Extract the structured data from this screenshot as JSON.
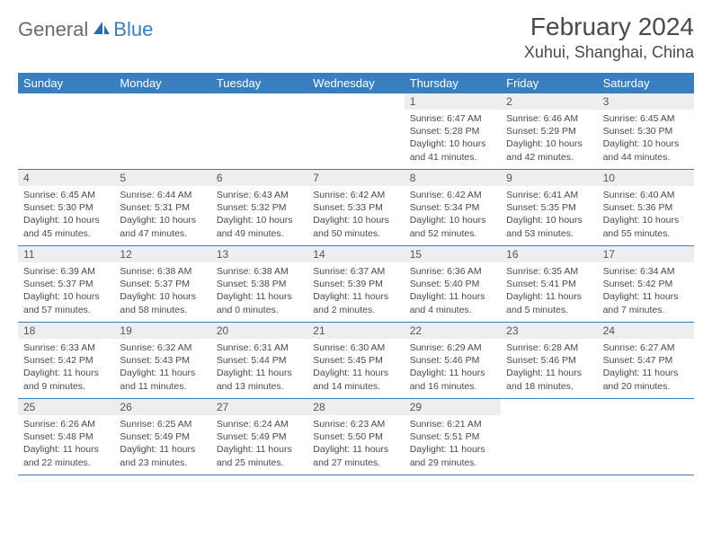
{
  "logo": {
    "general": "General",
    "blue": "Blue"
  },
  "title": "February 2024",
  "location": "Xuhui, Shanghai, China",
  "colors": {
    "header_bg": "#3a7fbd",
    "header_text": "#ffffff",
    "daynum_bg": "#eeeeee",
    "text": "#4a4a4a",
    "row_border": "#3a7fbd"
  },
  "day_names": [
    "Sunday",
    "Monday",
    "Tuesday",
    "Wednesday",
    "Thursday",
    "Friday",
    "Saturday"
  ],
  "weeks": [
    [
      {
        "n": "",
        "sr": "",
        "ss": "",
        "dl": ""
      },
      {
        "n": "",
        "sr": "",
        "ss": "",
        "dl": ""
      },
      {
        "n": "",
        "sr": "",
        "ss": "",
        "dl": ""
      },
      {
        "n": "",
        "sr": "",
        "ss": "",
        "dl": ""
      },
      {
        "n": "1",
        "sr": "Sunrise: 6:47 AM",
        "ss": "Sunset: 5:28 PM",
        "dl": "Daylight: 10 hours and 41 minutes."
      },
      {
        "n": "2",
        "sr": "Sunrise: 6:46 AM",
        "ss": "Sunset: 5:29 PM",
        "dl": "Daylight: 10 hours and 42 minutes."
      },
      {
        "n": "3",
        "sr": "Sunrise: 6:45 AM",
        "ss": "Sunset: 5:30 PM",
        "dl": "Daylight: 10 hours and 44 minutes."
      }
    ],
    [
      {
        "n": "4",
        "sr": "Sunrise: 6:45 AM",
        "ss": "Sunset: 5:30 PM",
        "dl": "Daylight: 10 hours and 45 minutes."
      },
      {
        "n": "5",
        "sr": "Sunrise: 6:44 AM",
        "ss": "Sunset: 5:31 PM",
        "dl": "Daylight: 10 hours and 47 minutes."
      },
      {
        "n": "6",
        "sr": "Sunrise: 6:43 AM",
        "ss": "Sunset: 5:32 PM",
        "dl": "Daylight: 10 hours and 49 minutes."
      },
      {
        "n": "7",
        "sr": "Sunrise: 6:42 AM",
        "ss": "Sunset: 5:33 PM",
        "dl": "Daylight: 10 hours and 50 minutes."
      },
      {
        "n": "8",
        "sr": "Sunrise: 6:42 AM",
        "ss": "Sunset: 5:34 PM",
        "dl": "Daylight: 10 hours and 52 minutes."
      },
      {
        "n": "9",
        "sr": "Sunrise: 6:41 AM",
        "ss": "Sunset: 5:35 PM",
        "dl": "Daylight: 10 hours and 53 minutes."
      },
      {
        "n": "10",
        "sr": "Sunrise: 6:40 AM",
        "ss": "Sunset: 5:36 PM",
        "dl": "Daylight: 10 hours and 55 minutes."
      }
    ],
    [
      {
        "n": "11",
        "sr": "Sunrise: 6:39 AM",
        "ss": "Sunset: 5:37 PM",
        "dl": "Daylight: 10 hours and 57 minutes."
      },
      {
        "n": "12",
        "sr": "Sunrise: 6:38 AM",
        "ss": "Sunset: 5:37 PM",
        "dl": "Daylight: 10 hours and 58 minutes."
      },
      {
        "n": "13",
        "sr": "Sunrise: 6:38 AM",
        "ss": "Sunset: 5:38 PM",
        "dl": "Daylight: 11 hours and 0 minutes."
      },
      {
        "n": "14",
        "sr": "Sunrise: 6:37 AM",
        "ss": "Sunset: 5:39 PM",
        "dl": "Daylight: 11 hours and 2 minutes."
      },
      {
        "n": "15",
        "sr": "Sunrise: 6:36 AM",
        "ss": "Sunset: 5:40 PM",
        "dl": "Daylight: 11 hours and 4 minutes."
      },
      {
        "n": "16",
        "sr": "Sunrise: 6:35 AM",
        "ss": "Sunset: 5:41 PM",
        "dl": "Daylight: 11 hours and 5 minutes."
      },
      {
        "n": "17",
        "sr": "Sunrise: 6:34 AM",
        "ss": "Sunset: 5:42 PM",
        "dl": "Daylight: 11 hours and 7 minutes."
      }
    ],
    [
      {
        "n": "18",
        "sr": "Sunrise: 6:33 AM",
        "ss": "Sunset: 5:42 PM",
        "dl": "Daylight: 11 hours and 9 minutes."
      },
      {
        "n": "19",
        "sr": "Sunrise: 6:32 AM",
        "ss": "Sunset: 5:43 PM",
        "dl": "Daylight: 11 hours and 11 minutes."
      },
      {
        "n": "20",
        "sr": "Sunrise: 6:31 AM",
        "ss": "Sunset: 5:44 PM",
        "dl": "Daylight: 11 hours and 13 minutes."
      },
      {
        "n": "21",
        "sr": "Sunrise: 6:30 AM",
        "ss": "Sunset: 5:45 PM",
        "dl": "Daylight: 11 hours and 14 minutes."
      },
      {
        "n": "22",
        "sr": "Sunrise: 6:29 AM",
        "ss": "Sunset: 5:46 PM",
        "dl": "Daylight: 11 hours and 16 minutes."
      },
      {
        "n": "23",
        "sr": "Sunrise: 6:28 AM",
        "ss": "Sunset: 5:46 PM",
        "dl": "Daylight: 11 hours and 18 minutes."
      },
      {
        "n": "24",
        "sr": "Sunrise: 6:27 AM",
        "ss": "Sunset: 5:47 PM",
        "dl": "Daylight: 11 hours and 20 minutes."
      }
    ],
    [
      {
        "n": "25",
        "sr": "Sunrise: 6:26 AM",
        "ss": "Sunset: 5:48 PM",
        "dl": "Daylight: 11 hours and 22 minutes."
      },
      {
        "n": "26",
        "sr": "Sunrise: 6:25 AM",
        "ss": "Sunset: 5:49 PM",
        "dl": "Daylight: 11 hours and 23 minutes."
      },
      {
        "n": "27",
        "sr": "Sunrise: 6:24 AM",
        "ss": "Sunset: 5:49 PM",
        "dl": "Daylight: 11 hours and 25 minutes."
      },
      {
        "n": "28",
        "sr": "Sunrise: 6:23 AM",
        "ss": "Sunset: 5:50 PM",
        "dl": "Daylight: 11 hours and 27 minutes."
      },
      {
        "n": "29",
        "sr": "Sunrise: 6:21 AM",
        "ss": "Sunset: 5:51 PM",
        "dl": "Daylight: 11 hours and 29 minutes."
      },
      {
        "n": "",
        "sr": "",
        "ss": "",
        "dl": ""
      },
      {
        "n": "",
        "sr": "",
        "ss": "",
        "dl": ""
      }
    ]
  ]
}
